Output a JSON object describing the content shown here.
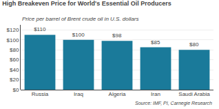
{
  "chart_data": {
    "type": "bar",
    "title": "High Breakeven Price for World's Essential Oil Producers",
    "subtitle": "Price per barrel of Brent crude oil in U.S. dollars",
    "annotations": [
      "Source: IMF, PI, Carnegie Research"
    ],
    "categories": [
      "Russia",
      "Iraq",
      "Algeria",
      "Iran",
      "Saudi Arabia"
    ],
    "values": [
      110,
      100,
      98,
      85,
      80
    ],
    "value_labels": [
      "$110",
      "$100",
      "$98",
      "$85",
      "$80"
    ],
    "data_labels": true,
    "color": "#1a7a9a",
    "ylim": [
      0,
      130
    ],
    "yticks": [
      {
        "value": 0,
        "label": "$0"
      },
      {
        "value": 20,
        "label": "$20"
      },
      {
        "value": 40,
        "label": "$40"
      },
      {
        "value": 60,
        "label": "$60"
      },
      {
        "value": 80,
        "label": "$80"
      },
      {
        "value": 100,
        "label": "$100"
      },
      {
        "value": 120,
        "label": "$120"
      }
    ],
    "grid": true
  }
}
